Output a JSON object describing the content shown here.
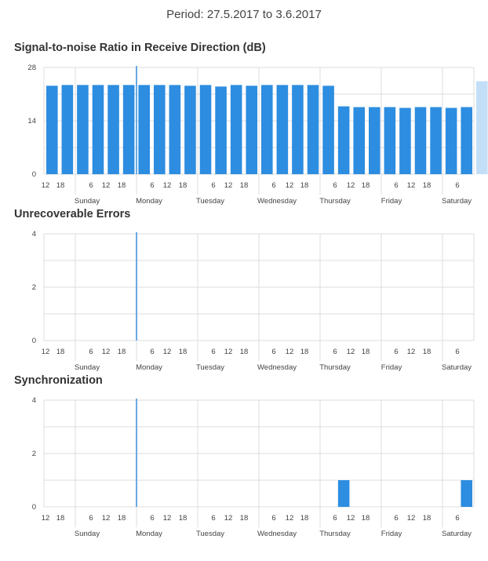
{
  "header": {
    "period": "Period: 27.5.2017 to 3.6.2017"
  },
  "colors": {
    "bar": "#2d8de0",
    "bar_light": "#c3dff7",
    "marker": "#6aa9e3",
    "grid": "#dddddd"
  },
  "time_axis": {
    "hour_ticks": [
      "12",
      "18",
      "6",
      "12",
      "18",
      "6",
      "12",
      "18",
      "6",
      "12",
      "18",
      "6",
      "12",
      "18",
      "6",
      "12",
      "18",
      "6",
      "12",
      "18",
      "6"
    ],
    "days": [
      "Sunday",
      "Monday",
      "Tuesday",
      "Wednesday",
      "Thursday",
      "Friday",
      "Saturday"
    ]
  },
  "chart_data": [
    {
      "type": "bar",
      "title": "Signal-to-noise Ratio in Receive Direction (dB)",
      "ylim": [
        0,
        28
      ],
      "yticks": [
        "0",
        "14",
        "28"
      ],
      "values": [
        23.2,
        23.4,
        23.4,
        23.4,
        23.4,
        23.4,
        23.4,
        23.4,
        23.4,
        23.2,
        23.4,
        23.0,
        23.4,
        23.2,
        23.4,
        23.4,
        23.4,
        23.4,
        23.2,
        17.8,
        17.6,
        17.6,
        17.6,
        17.4,
        17.6,
        17.6,
        17.4,
        17.6,
        24.4
      ],
      "highlighted_last": true,
      "grid": true
    },
    {
      "type": "bar",
      "title": "Unrecoverable Errors",
      "ylim": [
        0,
        4
      ],
      "yticks": [
        "0",
        "2",
        "4"
      ],
      "values": [
        0,
        0,
        0,
        0,
        0,
        0,
        0,
        0,
        0,
        0,
        0,
        0,
        0,
        0,
        0,
        0,
        0,
        0,
        0,
        0,
        0,
        0,
        0,
        0,
        0,
        0,
        0,
        0,
        0
      ],
      "grid": true
    },
    {
      "type": "bar",
      "title": "Synchronization",
      "ylim": [
        0,
        4
      ],
      "yticks": [
        "0",
        "2",
        "4"
      ],
      "values": [
        0,
        0,
        0,
        0,
        0,
        0,
        0,
        0,
        0,
        0,
        0,
        0,
        0,
        0,
        0,
        0,
        0,
        0,
        0,
        1,
        0,
        0,
        0,
        0,
        0,
        0,
        0,
        1,
        0
      ],
      "grid": true
    }
  ]
}
